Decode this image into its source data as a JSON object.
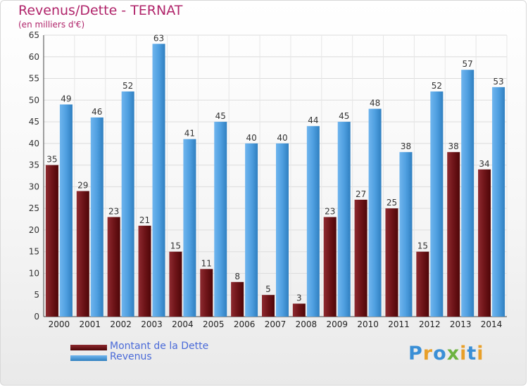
{
  "header": {
    "title": "Revenus/Dette - TERNAT",
    "subtitle": "(en milliers d'€)"
  },
  "legend": {
    "debt_label": "Montant de la Dette",
    "revenue_label": "Revenus"
  },
  "logo": {
    "text": "Proxiti"
  },
  "colors": {
    "debt": "#7a1c22",
    "revenue": "#4f9fe0",
    "title": "#b0246a",
    "legend_text": "#4a6ad8"
  },
  "chart_data": {
    "type": "bar",
    "categories": [
      "2000",
      "2001",
      "2002",
      "2003",
      "2004",
      "2005",
      "2006",
      "2007",
      "2008",
      "2009",
      "2010",
      "2011",
      "2012",
      "2013",
      "2014"
    ],
    "series": [
      {
        "name": "Montant de la Dette",
        "values": [
          35,
          29,
          23,
          21,
          15,
          11,
          8,
          5,
          3,
          23,
          27,
          25,
          15,
          38,
          34
        ]
      },
      {
        "name": "Revenus",
        "values": [
          49,
          46,
          52,
          63,
          41,
          45,
          40,
          40,
          44,
          45,
          48,
          38,
          52,
          57,
          53
        ]
      }
    ],
    "title": "Revenus/Dette - TERNAT",
    "ylabel": "(en milliers d'€)",
    "ylim": [
      0,
      65
    ],
    "yticks": [
      0,
      5,
      10,
      15,
      20,
      25,
      30,
      35,
      40,
      45,
      50,
      55,
      60,
      65
    ],
    "grid": true,
    "legend_position": "bottom-left"
  }
}
